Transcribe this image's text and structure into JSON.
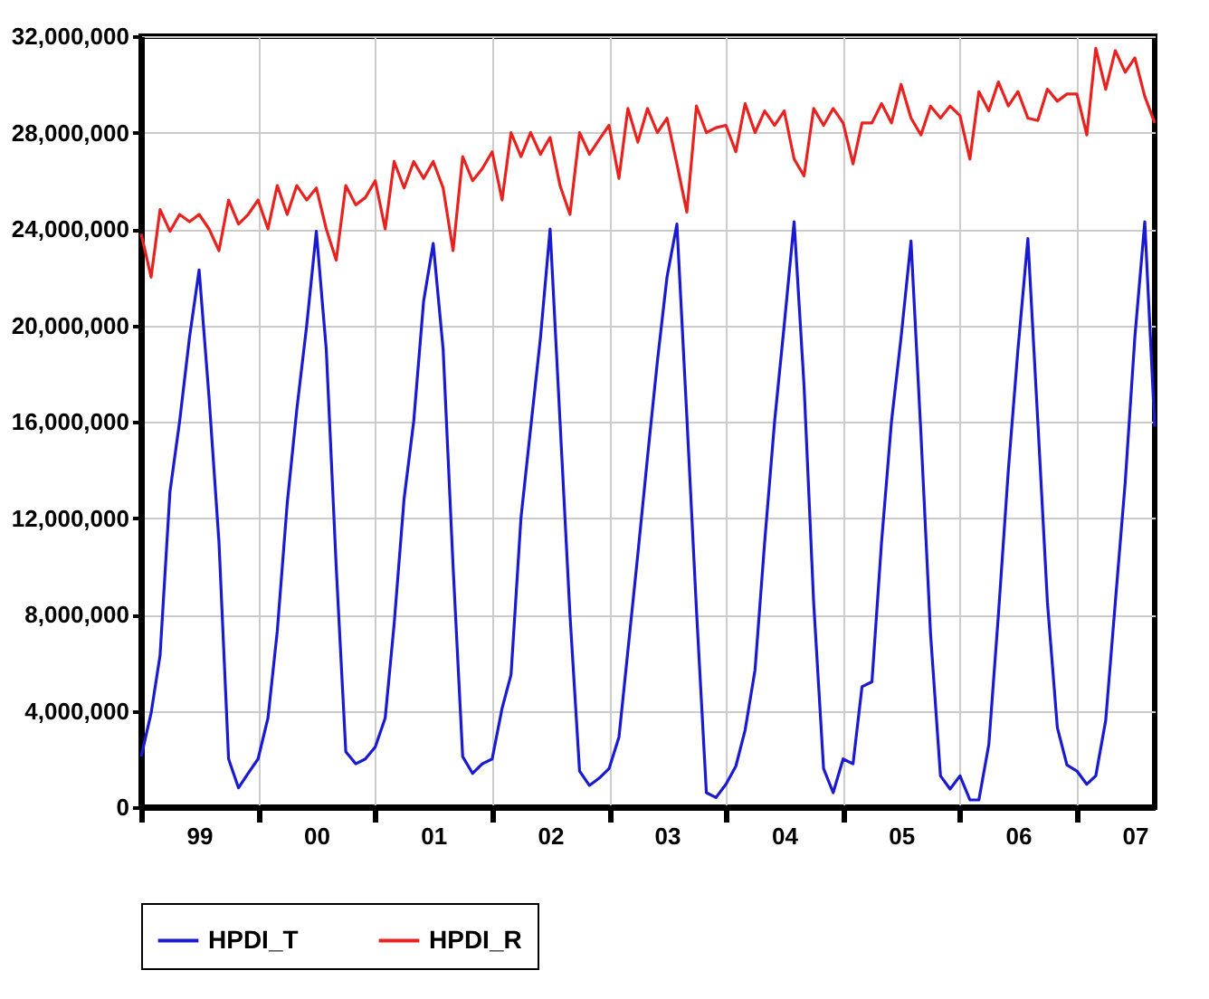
{
  "chart_data": {
    "type": "line",
    "x": [
      "1999-01",
      "1999-02",
      "1999-03",
      "1999-04",
      "1999-05",
      "1999-06",
      "1999-07",
      "1999-08",
      "1999-09",
      "1999-10",
      "1999-11",
      "1999-12",
      "2000-01",
      "2000-02",
      "2000-03",
      "2000-04",
      "2000-05",
      "2000-06",
      "2000-07",
      "2000-08",
      "2000-09",
      "2000-10",
      "2000-11",
      "2000-12",
      "2001-01",
      "2001-02",
      "2001-03",
      "2001-04",
      "2001-05",
      "2001-06",
      "2001-07",
      "2001-08",
      "2001-09",
      "2001-10",
      "2001-11",
      "2001-12",
      "2002-01",
      "2002-02",
      "2002-03",
      "2002-04",
      "2002-05",
      "2002-06",
      "2002-07",
      "2002-08",
      "2002-09",
      "2002-10",
      "2002-11",
      "2002-12",
      "2003-01",
      "2003-02",
      "2003-03",
      "2003-04",
      "2003-05",
      "2003-06",
      "2003-07",
      "2003-08",
      "2003-09",
      "2003-10",
      "2003-11",
      "2003-12",
      "2004-01",
      "2004-02",
      "2004-03",
      "2004-04",
      "2004-05",
      "2004-06",
      "2004-07",
      "2004-08",
      "2004-09",
      "2004-10",
      "2004-11",
      "2004-12",
      "2005-01",
      "2005-02",
      "2005-03",
      "2005-04",
      "2005-05",
      "2005-06",
      "2005-07",
      "2005-08",
      "2005-09",
      "2005-10",
      "2005-11",
      "2005-12",
      "2006-01",
      "2006-02",
      "2006-03",
      "2006-04",
      "2006-05",
      "2006-06",
      "2006-07",
      "2006-08",
      "2006-09",
      "2006-10",
      "2006-11",
      "2006-12",
      "2007-01",
      "2007-02",
      "2007-03",
      "2007-04",
      "2007-05",
      "2007-06",
      "2007-07",
      "2007-08",
      "2007-09"
    ],
    "series": [
      {
        "name": "HPDI_T",
        "color": "#1a1ad0",
        "values": [
          2100000,
          3900000,
          6300000,
          13100000,
          16000000,
          19500000,
          22300000,
          17000000,
          11000000,
          2000000,
          800000,
          1400000,
          2000000,
          3700000,
          7300000,
          12600000,
          16500000,
          20000000,
          23900000,
          19000000,
          10000000,
          2300000,
          1800000,
          2000000,
          2500000,
          3700000,
          7600000,
          12800000,
          16000000,
          21000000,
          23400000,
          19000000,
          10000000,
          2100000,
          1400000,
          1800000,
          2000000,
          4100000,
          5500000,
          12000000,
          15700000,
          19500000,
          24000000,
          16000000,
          8000000,
          1500000,
          900000,
          1200000,
          1600000,
          2900000,
          6500000,
          10500000,
          14500000,
          18500000,
          22000000,
          24200000,
          16200000,
          8200000,
          600000,
          400000,
          950000,
          1700000,
          3200000,
          5700000,
          11000000,
          16000000,
          20000000,
          24300000,
          17500000,
          8500000,
          1600000,
          600000,
          2000000,
          1800000,
          5000000,
          5200000,
          11000000,
          16000000,
          19500000,
          23500000,
          15500000,
          7200000,
          1300000,
          750000,
          1300000,
          300000,
          300000,
          2600000,
          8000000,
          14000000,
          19000000,
          23600000,
          16000000,
          8500000,
          3300000,
          1750000,
          1500000,
          950000,
          1300000,
          3600000,
          8500000,
          13500000,
          19500000,
          24300000,
          15800000
        ]
      },
      {
        "name": "HPDI_R",
        "color": "#e8231f",
        "values": [
          23800000,
          22000000,
          24800000,
          23900000,
          24600000,
          24300000,
          24600000,
          24000000,
          23100000,
          25200000,
          24200000,
          24600000,
          25200000,
          24000000,
          25800000,
          24600000,
          25800000,
          25200000,
          25700000,
          24000000,
          22700000,
          25800000,
          25000000,
          25300000,
          26000000,
          24000000,
          26800000,
          25700000,
          26800000,
          26100000,
          26800000,
          25700000,
          23100000,
          27000000,
          26000000,
          26500000,
          27200000,
          25200000,
          28000000,
          27000000,
          28000000,
          27100000,
          27800000,
          25800000,
          24600000,
          28000000,
          27100000,
          27700000,
          28300000,
          26100000,
          29000000,
          27600000,
          29000000,
          28000000,
          28600000,
          26700000,
          24700000,
          29100000,
          28000000,
          28200000,
          28300000,
          27200000,
          29200000,
          28000000,
          28900000,
          28300000,
          28900000,
          26900000,
          26200000,
          29000000,
          28300000,
          29000000,
          28400000,
          26700000,
          28400000,
          28400000,
          29200000,
          28400000,
          30000000,
          28600000,
          27900000,
          29100000,
          28600000,
          29100000,
          28700000,
          26900000,
          29700000,
          28900000,
          30100000,
          29100000,
          29700000,
          28600000,
          28500000,
          29800000,
          29300000,
          29600000,
          29600000,
          27900000,
          31500000,
          29800000,
          31400000,
          30500000,
          31100000,
          29500000,
          28400000
        ]
      }
    ],
    "xlim": [
      "1999-01",
      "2007-09"
    ],
    "xticks": [
      {
        "value": "1999-01",
        "label": null
      },
      {
        "value": "1999-07",
        "label": "99"
      },
      {
        "value": "2000-01",
        "label": null
      },
      {
        "value": "2000-07",
        "label": "00"
      },
      {
        "value": "2001-01",
        "label": null
      },
      {
        "value": "2001-07",
        "label": "01"
      },
      {
        "value": "2002-01",
        "label": null
      },
      {
        "value": "2002-07",
        "label": "02"
      },
      {
        "value": "2003-01",
        "label": null
      },
      {
        "value": "2003-07",
        "label": "03"
      },
      {
        "value": "2004-01",
        "label": null
      },
      {
        "value": "2004-07",
        "label": "04"
      },
      {
        "value": "2005-01",
        "label": null
      },
      {
        "value": "2005-07",
        "label": "05"
      },
      {
        "value": "2006-01",
        "label": null
      },
      {
        "value": "2006-07",
        "label": "06"
      },
      {
        "value": "2007-01",
        "label": null
      },
      {
        "value": "2007-07",
        "label": "07"
      }
    ],
    "ylim": [
      0,
      32000000
    ],
    "yticks": [
      {
        "value": 0,
        "label": "0"
      },
      {
        "value": 4000000,
        "label": "4,000,000"
      },
      {
        "value": 8000000,
        "label": "8,000,000"
      },
      {
        "value": 12000000,
        "label": "12,000,000"
      },
      {
        "value": 16000000,
        "label": "16,000,000"
      },
      {
        "value": 20000000,
        "label": "20,000,000"
      },
      {
        "value": 24000000,
        "label": "24,000,000"
      },
      {
        "value": 28000000,
        "label": "28,000,000"
      },
      {
        "value": 32000000,
        "label": "32,000,000"
      }
    ],
    "grid": true,
    "legend": "bottom",
    "line_style": "solid"
  }
}
